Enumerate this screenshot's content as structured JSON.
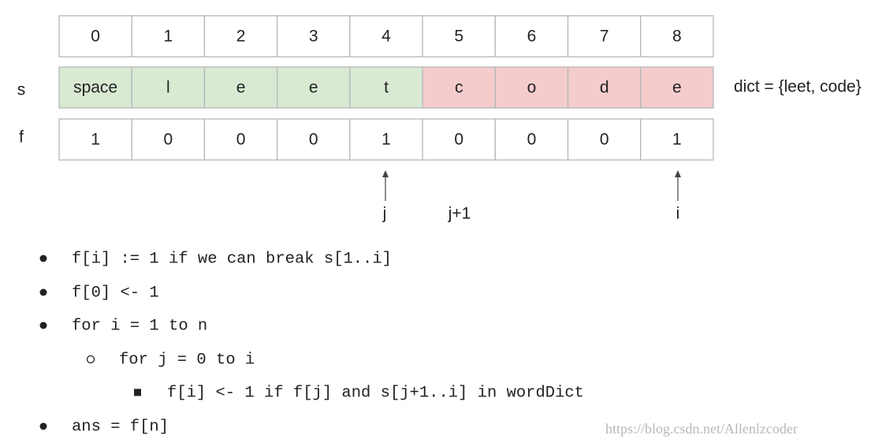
{
  "row_labels": {
    "s": "s",
    "f": "f"
  },
  "index": [
    0,
    1,
    2,
    3,
    4,
    5,
    6,
    7,
    8
  ],
  "s": [
    "space",
    "l",
    "e",
    "e",
    "t",
    "c",
    "o",
    "d",
    "e"
  ],
  "f": [
    1,
    0,
    0,
    0,
    1,
    0,
    0,
    0,
    1
  ],
  "dict": "dict = {leet, code}",
  "pointers": {
    "j": "j",
    "j_plus_1": "j+1",
    "i": "i"
  },
  "pseudocode": [
    "f[i] := 1 if we can break s[1..i]",
    "f[0] <- 1",
    "for i = 1 to n",
    "for j = 0 to i",
    "f[i] <- 1 if f[j] and s[j+1..i] in wordDict",
    "ans = f[n]"
  ],
  "watermark": "https://blog.csdn.net/Allenlzcoder"
}
